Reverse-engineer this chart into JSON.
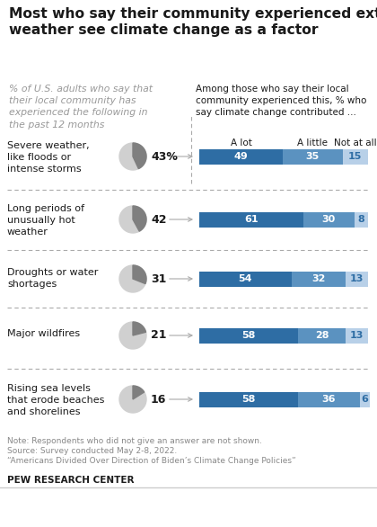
{
  "title": "Most who say their community experienced extreme\nweather see climate change as a factor",
  "subtitle": "% of U.S. adults who say that\ntheir local community has\nexperienced the following in\nthe past 12 months",
  "right_header": "Among those who say their local\ncommunity experienced this, % who\nsay climate change contributed ...",
  "col_labels": [
    "A lot",
    "A little",
    "Not at all"
  ],
  "rows": [
    {
      "label": "Severe weather,\nlike floods or\nintense storms",
      "pct": 43,
      "pct_str": "43%",
      "values": [
        49,
        35,
        15
      ]
    },
    {
      "label": "Long periods of\nunusually hot\nweather",
      "pct": 42,
      "pct_str": "42",
      "values": [
        61,
        30,
        8
      ]
    },
    {
      "label": "Droughts or water\nshortages",
      "pct": 31,
      "pct_str": "31",
      "values": [
        54,
        32,
        13
      ]
    },
    {
      "label": "Major wildfires",
      "pct": 21,
      "pct_str": "21",
      "values": [
        58,
        28,
        13
      ]
    },
    {
      "label": "Rising sea levels\nthat erode beaches\nand shorelines",
      "pct": 16,
      "pct_str": "16",
      "values": [
        58,
        36,
        6
      ]
    }
  ],
  "color_a_lot": "#2E6DA4",
  "color_a_little": "#5B92C0",
  "color_not_at_all": "#B8D0E8",
  "color_pie_filled": "#7F7F7F",
  "color_pie_bg": "#D0D0D0",
  "note1": "Note: Respondents who did not give an answer are not shown.",
  "note2": "Source: Survey conducted May 2-8, 2022.",
  "note3": "“Americans Divided Over Direction of Biden’s Climate Change Policies”",
  "source_org": "PEW RESEARCH CENTER",
  "bg_color": "#FFFFFF",
  "divider_color": "#AAAAAA",
  "text_dark": "#1a1a1a",
  "text_gray": "#888888",
  "text_note": "#888888"
}
